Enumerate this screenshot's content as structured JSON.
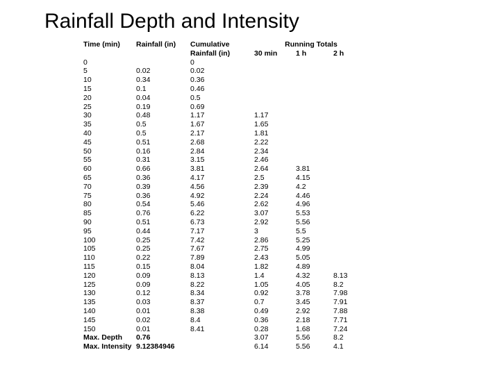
{
  "title": "Rainfall Depth and Intensity",
  "headers": {
    "time": "Time (min)",
    "rainfall": "Rainfall (in)",
    "cumulative_l1": "Cumulative",
    "cumulative_l2": "Rainfall (in)",
    "running_totals": "Running Totals",
    "rt30": "30 min",
    "rt1h": "1 h",
    "rt2h": "2 h"
  },
  "rows": [
    {
      "t": "0",
      "r": "",
      "c": "0",
      "r30": "",
      "r1": "",
      "r2": ""
    },
    {
      "t": "5",
      "r": "0.02",
      "c": "0.02",
      "r30": "",
      "r1": "",
      "r2": ""
    },
    {
      "t": "10",
      "r": "0.34",
      "c": "0.36",
      "r30": "",
      "r1": "",
      "r2": ""
    },
    {
      "t": "15",
      "r": "0.1",
      "c": "0.46",
      "r30": "",
      "r1": "",
      "r2": ""
    },
    {
      "t": "20",
      "r": "0.04",
      "c": "0.5",
      "r30": "",
      "r1": "",
      "r2": ""
    },
    {
      "t": "25",
      "r": "0.19",
      "c": "0.69",
      "r30": "",
      "r1": "",
      "r2": ""
    },
    {
      "t": "30",
      "r": "0.48",
      "c": "1.17",
      "r30": "1.17",
      "r1": "",
      "r2": ""
    },
    {
      "t": "35",
      "r": "0.5",
      "c": "1.67",
      "r30": "1.65",
      "r1": "",
      "r2": ""
    },
    {
      "t": "40",
      "r": "0.5",
      "c": "2.17",
      "r30": "1.81",
      "r1": "",
      "r2": ""
    },
    {
      "t": "45",
      "r": "0.51",
      "c": "2.68",
      "r30": "2.22",
      "r1": "",
      "r2": ""
    },
    {
      "t": "50",
      "r": "0.16",
      "c": "2.84",
      "r30": "2.34",
      "r1": "",
      "r2": ""
    },
    {
      "t": "55",
      "r": "0.31",
      "c": "3.15",
      "r30": "2.46",
      "r1": "",
      "r2": ""
    },
    {
      "t": "60",
      "r": "0.66",
      "c": "3.81",
      "r30": "2.64",
      "r1": "3.81",
      "r2": ""
    },
    {
      "t": "65",
      "r": "0.36",
      "c": "4.17",
      "r30": "2.5",
      "r1": "4.15",
      "r2": ""
    },
    {
      "t": "70",
      "r": "0.39",
      "c": "4.56",
      "r30": "2.39",
      "r1": "4.2",
      "r2": ""
    },
    {
      "t": "75",
      "r": "0.36",
      "c": "4.92",
      "r30": "2.24",
      "r1": "4.46",
      "r2": ""
    },
    {
      "t": "80",
      "r": "0.54",
      "c": "5.46",
      "r30": "2.62",
      "r1": "4.96",
      "r2": ""
    },
    {
      "t": "85",
      "r": "0.76",
      "c": "6.22",
      "r30": "3.07",
      "r1": "5.53",
      "r2": ""
    },
    {
      "t": "90",
      "r": "0.51",
      "c": "6.73",
      "r30": "2.92",
      "r1": "5.56",
      "r2": ""
    },
    {
      "t": "95",
      "r": "0.44",
      "c": "7.17",
      "r30": "3",
      "r1": "5.5",
      "r2": ""
    },
    {
      "t": "100",
      "r": "0.25",
      "c": "7.42",
      "r30": "2.86",
      "r1": "5.25",
      "r2": ""
    },
    {
      "t": "105",
      "r": "0.25",
      "c": "7.67",
      "r30": "2.75",
      "r1": "4.99",
      "r2": ""
    },
    {
      "t": "110",
      "r": "0.22",
      "c": "7.89",
      "r30": "2.43",
      "r1": "5.05",
      "r2": ""
    },
    {
      "t": "115",
      "r": "0.15",
      "c": "8.04",
      "r30": "1.82",
      "r1": "4.89",
      "r2": ""
    },
    {
      "t": "120",
      "r": "0.09",
      "c": "8.13",
      "r30": "1.4",
      "r1": "4.32",
      "r2": "8.13"
    },
    {
      "t": "125",
      "r": "0.09",
      "c": "8.22",
      "r30": "1.05",
      "r1": "4.05",
      "r2": "8.2"
    },
    {
      "t": "130",
      "r": "0.12",
      "c": "8.34",
      "r30": "0.92",
      "r1": "3.78",
      "r2": "7.98"
    },
    {
      "t": "135",
      "r": "0.03",
      "c": "8.37",
      "r30": "0.7",
      "r1": "3.45",
      "r2": "7.91"
    },
    {
      "t": "140",
      "r": "0.01",
      "c": "8.38",
      "r30": "0.49",
      "r1": "2.92",
      "r2": "7.88"
    },
    {
      "t": "145",
      "r": "0.02",
      "c": "8.4",
      "r30": "0.36",
      "r1": "2.18",
      "r2": "7.71"
    },
    {
      "t": "150",
      "r": "0.01",
      "c": "8.41",
      "r30": "0.28",
      "r1": "1.68",
      "r2": "7.24"
    },
    {
      "t": "",
      "r": "",
      "c": "",
      "r30": "3.07",
      "r1": "5.56",
      "r2": "8.2"
    },
    {
      "t": "",
      "r": "",
      "c": "",
      "r30": "6.14",
      "r1": "5.56",
      "r2": "4.1"
    }
  ],
  "footer": {
    "max_depth_label": "Max. Depth",
    "max_depth_value": "0.76",
    "max_intensity_label": "Max. Intensity",
    "max_intensity_value": "9.12384946"
  },
  "style": {
    "background": "#ffffff",
    "title_fontsize": 30,
    "body_fontsize": 10.5,
    "text_color": "#000000"
  }
}
